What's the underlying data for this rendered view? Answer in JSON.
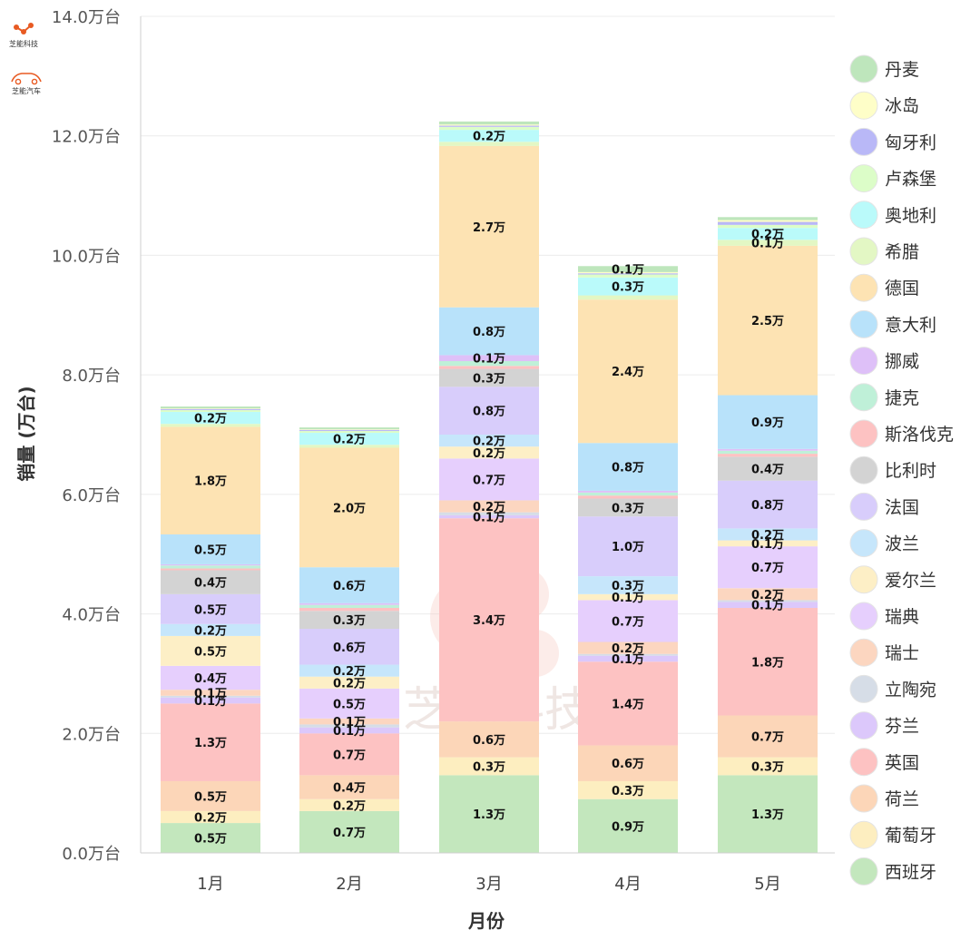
{
  "brand": {
    "logo_top_text": "芝能科技",
    "logo_bottom_text": "芝能汽车",
    "watermark": "芝能科技"
  },
  "chart_data": {
    "type": "bar",
    "stacked": true,
    "categories": [
      "1月",
      "2月",
      "3月",
      "4月",
      "5月"
    ],
    "xlabel": "月份",
    "ylabel": "销量 (万台)",
    "ylim": [
      0,
      14
    ],
    "y_ticks": [
      0,
      2,
      4,
      6,
      8,
      10,
      12,
      14
    ],
    "y_tick_labels": [
      "0.0万台",
      "2.0万台",
      "4.0万台",
      "6.0万台",
      "8.0万台",
      "10.0万台",
      "12.0万台",
      "14.0万台"
    ],
    "grid": "horizontal",
    "legend_position": "right",
    "series": [
      {
        "name": "西班牙",
        "color": "#c3e7bd",
        "values": [
          0.5,
          0.7,
          1.3,
          0.9,
          1.3
        ]
      },
      {
        "name": "葡萄牙",
        "color": "#fdeec0",
        "values": [
          0.2,
          0.2,
          0.3,
          0.3,
          0.3
        ]
      },
      {
        "name": "荷兰",
        "color": "#fcd6b8",
        "values": [
          0.5,
          0.4,
          0.6,
          0.6,
          0.7
        ]
      },
      {
        "name": "英国",
        "color": "#fdc2c2",
        "values": [
          1.3,
          0.7,
          3.4,
          1.4,
          1.8
        ]
      },
      {
        "name": "芬兰",
        "color": "#dcc8fb",
        "values": [
          0.1,
          0.1,
          0.05,
          0.1,
          0.1
        ]
      },
      {
        "name": "立陶宛",
        "color": "#d6dde7",
        "values": [
          0.03,
          0.05,
          0.05,
          0.03,
          0.03
        ]
      },
      {
        "name": "瑞士",
        "color": "#fcd6c0",
        "values": [
          0.1,
          0.1,
          0.2,
          0.2,
          0.2
        ]
      },
      {
        "name": "瑞典",
        "color": "#e6cffd",
        "values": [
          0.4,
          0.5,
          0.7,
          0.7,
          0.7
        ]
      },
      {
        "name": "爱尔兰",
        "color": "#fdefc6",
        "values": [
          0.5,
          0.2,
          0.2,
          0.1,
          0.1
        ]
      },
      {
        "name": "波兰",
        "color": "#c6e6fb",
        "values": [
          0.2,
          0.2,
          0.2,
          0.3,
          0.2
        ]
      },
      {
        "name": "法国",
        "color": "#d8cdfb",
        "values": [
          0.5,
          0.6,
          0.8,
          1.0,
          0.8
        ]
      },
      {
        "name": "比利时",
        "color": "#d3d3d3",
        "values": [
          0.4,
          0.3,
          0.3,
          0.3,
          0.4
        ]
      },
      {
        "name": "斯洛伐克",
        "color": "#fdc2c2",
        "values": [
          0.03,
          0.05,
          0.05,
          0.05,
          0.05
        ]
      },
      {
        "name": "捷克",
        "color": "#bff0d8",
        "values": [
          0.05,
          0.05,
          0.08,
          0.05,
          0.05
        ]
      },
      {
        "name": "挪威",
        "color": "#dec0f8",
        "values": [
          0.02,
          0.03,
          0.1,
          0.03,
          0.03
        ]
      },
      {
        "name": "意大利",
        "color": "#b8e2fa",
        "values": [
          0.5,
          0.6,
          0.8,
          0.8,
          0.9
        ]
      },
      {
        "name": "德国",
        "color": "#fde3b3",
        "values": [
          1.8,
          2.0,
          2.7,
          2.4,
          2.5
        ]
      },
      {
        "name": "希腊",
        "color": "#e3f7c4",
        "values": [
          0.05,
          0.05,
          0.07,
          0.07,
          0.1
        ]
      },
      {
        "name": "奥地利",
        "color": "#bafafa",
        "values": [
          0.2,
          0.2,
          0.2,
          0.3,
          0.2
        ]
      },
      {
        "name": "卢森堡",
        "color": "#dcfdc8",
        "values": [
          0.03,
          0.03,
          0.05,
          0.05,
          0.05
        ]
      },
      {
        "name": "匈牙利",
        "color": "#b9b8f7",
        "values": [
          0.02,
          0.02,
          0.02,
          0.02,
          0.05
        ]
      },
      {
        "name": "冰岛",
        "color": "#fefec8",
        "values": [
          0.01,
          0.01,
          0.02,
          0.02,
          0.03
        ]
      },
      {
        "name": "丹麦",
        "color": "#bee6bc",
        "values": [
          0.03,
          0.03,
          0.05,
          0.1,
          0.05
        ]
      }
    ],
    "data_labels": [
      [
        "0.5万",
        "0.2万",
        "0.5万",
        "1.3万",
        "0.1万",
        "",
        "0.1万",
        "0.4万",
        "0.5万",
        "0.2万",
        "0.5万",
        "0.4万",
        "",
        "",
        "",
        "0.5万",
        "1.8万",
        "",
        "0.2万",
        "",
        "",
        "",
        ""
      ],
      [
        "0.7万",
        "0.2万",
        "0.4万",
        "0.7万",
        "0.1万",
        "",
        "0.1万",
        "0.5万",
        "0.2万",
        "0.2万",
        "0.6万",
        "0.3万",
        "",
        "",
        "",
        "0.6万",
        "2.0万",
        "",
        "0.2万",
        "",
        "",
        "",
        ""
      ],
      [
        "1.3万",
        "0.3万",
        "0.6万",
        "3.4万",
        "0.1万",
        "",
        "0.2万",
        "0.7万",
        "0.2万",
        "0.2万",
        "0.8万",
        "0.3万",
        "",
        "",
        "0.1万",
        "0.8万",
        "2.7万",
        "",
        "0.2万",
        "",
        "",
        "",
        ""
      ],
      [
        "0.9万",
        "0.3万",
        "0.6万",
        "1.4万",
        "0.1万",
        "",
        "0.2万",
        "0.7万",
        "0.1万",
        "0.3万",
        "1.0万",
        "0.3万",
        "",
        "",
        "",
        "0.8万",
        "2.4万",
        "",
        "0.3万",
        "",
        "",
        "",
        "0.1万"
      ],
      [
        "1.3万",
        "0.3万",
        "0.7万",
        "1.8万",
        "0.1万",
        "",
        "0.2万",
        "0.7万",
        "0.1万",
        "0.2万",
        "0.8万",
        "0.4万",
        "",
        "",
        "",
        "0.9万",
        "2.5万",
        "0.1万",
        "0.2万",
        "",
        "",
        "",
        ""
      ]
    ]
  }
}
